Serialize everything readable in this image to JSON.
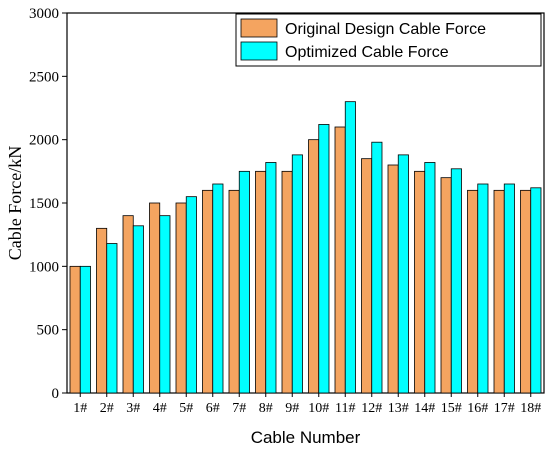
{
  "chart_data": {
    "type": "bar",
    "categories": [
      "1#",
      "2#",
      "3#",
      "4#",
      "5#",
      "6#",
      "7#",
      "8#",
      "9#",
      "10#",
      "11#",
      "12#",
      "13#",
      "14#",
      "15#",
      "16#",
      "17#",
      "18#"
    ],
    "series": [
      {
        "name": "Original Design Cable Force",
        "color": "#f4a460",
        "values": [
          1000,
          1300,
          1400,
          1500,
          1500,
          1600,
          1600,
          1750,
          1750,
          2000,
          2100,
          1850,
          1800,
          1750,
          1700,
          1600,
          1600,
          1600
        ]
      },
      {
        "name": "Optimized Cable Force",
        "color": "#00ffff",
        "values": [
          1000,
          1180,
          1320,
          1400,
          1550,
          1650,
          1750,
          1820,
          1880,
          2120,
          2300,
          1980,
          1880,
          1820,
          1770,
          1650,
          1650,
          1620
        ]
      }
    ],
    "xlabel": "Cable Number",
    "ylabel": "Cable Force/kN",
    "ylim": [
      0,
      3000
    ],
    "yticks": [
      0,
      500,
      1000,
      1500,
      2000,
      2500,
      3000
    ],
    "grid": false,
    "legend_position": "top-right"
  }
}
